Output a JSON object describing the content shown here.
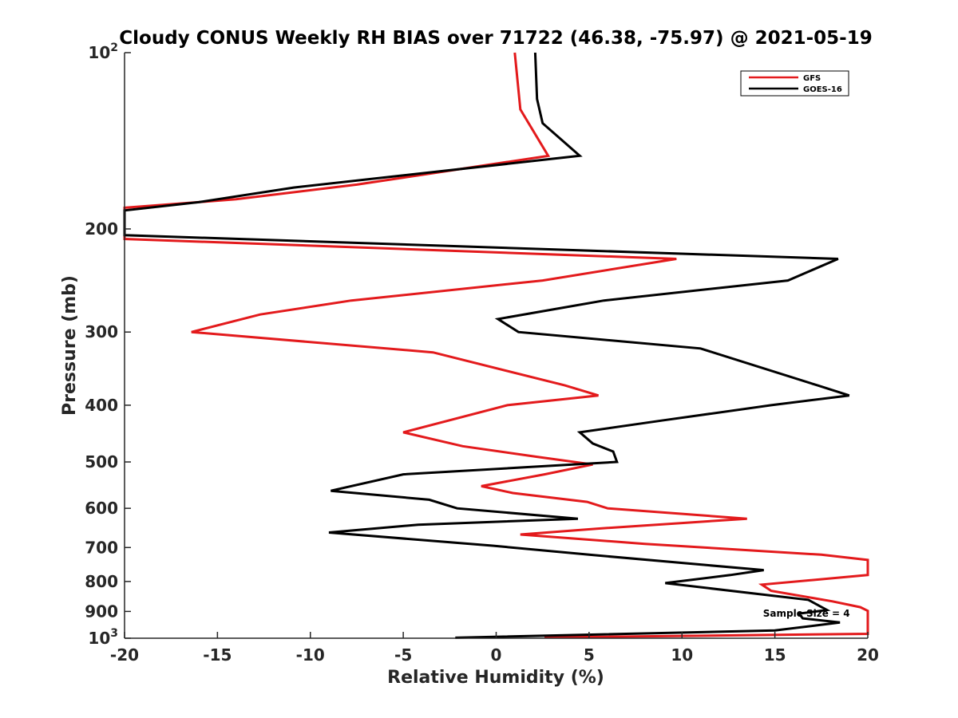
{
  "chart_data": {
    "type": "line",
    "title": "Cloudy CONUS Weekly RH BIAS over 71722 (46.38, -75.97) @ 2021-05-19",
    "xlabel": "Relative Humidity (%)",
    "ylabel": "Pressure (mb)",
    "xlim": [
      -20,
      20
    ],
    "ylim": [
      100,
      1000
    ],
    "yscale": "log",
    "y_reversed": true,
    "x_ticks": [
      -20,
      -15,
      -10,
      -5,
      0,
      5,
      10,
      15,
      20
    ],
    "x_tick_labels": [
      "-20",
      "-15",
      "-10",
      "-5",
      "0",
      "5",
      "10",
      "15",
      "20"
    ],
    "y_ticks": [
      100,
      200,
      300,
      400,
      500,
      600,
      700,
      800,
      900,
      1000
    ],
    "y_tick_labels": [
      {
        "base": "10",
        "exp": "2"
      },
      {
        "base": "200",
        "exp": ""
      },
      {
        "base": "300",
        "exp": ""
      },
      {
        "base": "400",
        "exp": ""
      },
      {
        "base": "500",
        "exp": ""
      },
      {
        "base": "600",
        "exp": ""
      },
      {
        "base": "700",
        "exp": ""
      },
      {
        "base": "800",
        "exp": ""
      },
      {
        "base": "900",
        "exp": ""
      },
      {
        "base": "10",
        "exp": "3"
      }
    ],
    "legend_position": "top-right",
    "grid": false,
    "annotation": {
      "label": "Sample Size = 4",
      "x": 16.7,
      "pressure": 908
    },
    "series": [
      {
        "name": "GFS",
        "color": "#e31a1c",
        "points": [
          [
            1.0,
            100
          ],
          [
            1.3,
            125
          ],
          [
            2.8,
            150
          ],
          [
            -7.5,
            168
          ],
          [
            -14,
            178
          ],
          [
            -20,
            184
          ],
          [
            -20,
            208
          ],
          [
            9.7,
            225
          ],
          [
            2.5,
            245
          ],
          [
            -7.8,
            265
          ],
          [
            -12.7,
            280
          ],
          [
            -16.4,
            300
          ],
          [
            -3.4,
            325
          ],
          [
            3.7,
            370
          ],
          [
            5.5,
            385
          ],
          [
            0.6,
            400
          ],
          [
            -5.0,
            445
          ],
          [
            -1.8,
            470
          ],
          [
            2.2,
            490
          ],
          [
            5.2,
            505
          ],
          [
            2.6,
            525
          ],
          [
            -0.8,
            550
          ],
          [
            0.9,
            565
          ],
          [
            4.9,
            585
          ],
          [
            6.0,
            600
          ],
          [
            13.5,
            625
          ],
          [
            5.4,
            650
          ],
          [
            1.3,
            665
          ],
          [
            8.0,
            690
          ],
          [
            17.5,
            720
          ],
          [
            20,
            735
          ],
          [
            20,
            780
          ],
          [
            14.3,
            810
          ],
          [
            14.8,
            830
          ],
          [
            18.1,
            865
          ],
          [
            19.6,
            885
          ],
          [
            20,
            898
          ],
          [
            20,
            983
          ],
          [
            2.6,
            997
          ]
        ]
      },
      {
        "name": "GOES-16",
        "color": "#000000",
        "points": [
          [
            2.1,
            100
          ],
          [
            2.2,
            120
          ],
          [
            2.5,
            132
          ],
          [
            4.5,
            150
          ],
          [
            -10.9,
            170
          ],
          [
            -16,
            180
          ],
          [
            -20,
            186
          ],
          [
            -20,
            205
          ],
          [
            18.4,
            225
          ],
          [
            15.7,
            245
          ],
          [
            5.8,
            265
          ],
          [
            0.1,
            285
          ],
          [
            1.2,
            300
          ],
          [
            11.0,
            320
          ],
          [
            17.3,
            370
          ],
          [
            19.0,
            385
          ],
          [
            14.8,
            400
          ],
          [
            8.9,
            425
          ],
          [
            4.5,
            445
          ],
          [
            5.2,
            465
          ],
          [
            6.3,
            480
          ],
          [
            6.5,
            500
          ],
          [
            -5.0,
            525
          ],
          [
            -8.9,
            560
          ],
          [
            -3.6,
            580
          ],
          [
            -2.1,
            600
          ],
          [
            4.4,
            625
          ],
          [
            -4.2,
            640
          ],
          [
            -9.0,
            660
          ],
          [
            -0.2,
            695
          ],
          [
            5.0,
            720
          ],
          [
            11.3,
            750
          ],
          [
            14.4,
            765
          ],
          [
            12.6,
            780
          ],
          [
            9.1,
            805
          ],
          [
            16.8,
            860
          ],
          [
            17.8,
            895
          ],
          [
            16.3,
            908
          ],
          [
            16.5,
            925
          ],
          [
            18.5,
            940
          ],
          [
            15.0,
            970
          ],
          [
            -2.2,
            998
          ]
        ]
      }
    ]
  }
}
